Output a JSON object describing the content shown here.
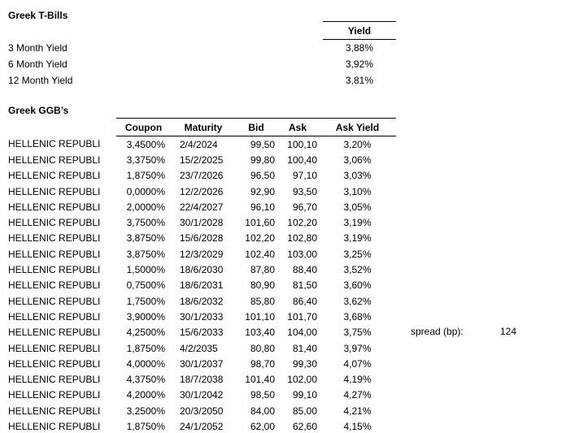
{
  "tbills": {
    "title": "Greek T-Bills",
    "yield_header": "Yield",
    "rows": [
      {
        "label": "3 Month Yield",
        "value": "3,88%"
      },
      {
        "label": "6 Month Yield",
        "value": "3,92%"
      },
      {
        "label": "12 Month Yield",
        "value": "3,81%"
      }
    ]
  },
  "ggb": {
    "title": "Greek GGB’s",
    "columns": [
      "Coupon",
      "Maturity",
      "Bid",
      "Ask",
      "Ask Yield"
    ],
    "rows": [
      {
        "name": "HELLENIC REPUBLI",
        "coupon": "3,4500%",
        "maturity": "2/4/2024",
        "bid": "99,50",
        "ask": "100,10",
        "ask_yield": "3,20%"
      },
      {
        "name": "HELLENIC REPUBLI",
        "coupon": "3,3750%",
        "maturity": "15/2/2025",
        "bid": "99,80",
        "ask": "100,40",
        "ask_yield": "3,06%"
      },
      {
        "name": "HELLENIC REPUBLI",
        "coupon": "1,8750%",
        "maturity": "23/7/2026",
        "bid": "96,50",
        "ask": "97,10",
        "ask_yield": "3,03%"
      },
      {
        "name": "HELLENIC REPUBLI",
        "coupon": "0,0000%",
        "maturity": "12/2/2026",
        "bid": "92,90",
        "ask": "93,50",
        "ask_yield": "3,10%"
      },
      {
        "name": "HELLENIC REPUBLI",
        "coupon": "2,0000%",
        "maturity": "22/4/2027",
        "bid": "96,10",
        "ask": "96,70",
        "ask_yield": "3,05%"
      },
      {
        "name": "HELLENIC REPUBLI",
        "coupon": "3,7500%",
        "maturity": "30/1/2028",
        "bid": "101,60",
        "ask": "102,20",
        "ask_yield": "3,19%"
      },
      {
        "name": "HELLENIC REPUBLI",
        "coupon": "3,8750%",
        "maturity": "15/6/2028",
        "bid": "102,20",
        "ask": "102,80",
        "ask_yield": "3,19%"
      },
      {
        "name": "HELLENIC REPUBLI",
        "coupon": "3,8750%",
        "maturity": "12/3/2029",
        "bid": "102,40",
        "ask": "103,00",
        "ask_yield": "3,25%"
      },
      {
        "name": "HELLENIC REPUBLI",
        "coupon": "1,5000%",
        "maturity": "18/6/2030",
        "bid": "87,80",
        "ask": "88,40",
        "ask_yield": "3,52%"
      },
      {
        "name": "HELLENIC REPUBLI",
        "coupon": "0,7500%",
        "maturity": "18/6/2031",
        "bid": "80,90",
        "ask": "81,50",
        "ask_yield": "3,60%"
      },
      {
        "name": "HELLENIC REPUBLI",
        "coupon": "1,7500%",
        "maturity": "18/6/2032",
        "bid": "85,80",
        "ask": "86,40",
        "ask_yield": "3,62%"
      },
      {
        "name": "HELLENIC REPUBLI",
        "coupon": "3,9000%",
        "maturity": "30/1/2033",
        "bid": "101,10",
        "ask": "101,70",
        "ask_yield": "3,68%"
      },
      {
        "name": "HELLENIC REPUBLI",
        "coupon": "4,2500%",
        "maturity": "15/6/2033",
        "bid": "103,40",
        "ask": "104,00",
        "ask_yield": "3,75%"
      },
      {
        "name": "HELLENIC REPUBLI",
        "coupon": "1,8750%",
        "maturity": "4/2/2035",
        "bid": "80,80",
        "ask": "81,40",
        "ask_yield": "3,97%"
      },
      {
        "name": "HELLENIC REPUBLI",
        "coupon": "4,0000%",
        "maturity": "30/1/2037",
        "bid": "98,70",
        "ask": "99,30",
        "ask_yield": "4,07%"
      },
      {
        "name": "HELLENIC REPUBLI",
        "coupon": "4,3750%",
        "maturity": "18/7/2038",
        "bid": "101,40",
        "ask": "102,00",
        "ask_yield": "4,19%"
      },
      {
        "name": "HELLENIC REPUBLI",
        "coupon": "4,2000%",
        "maturity": "30/1/2042",
        "bid": "98,50",
        "ask": "99,10",
        "ask_yield": "4,27%"
      },
      {
        "name": "HELLENIC REPUBLI",
        "coupon": "3,2500%",
        "maturity": "20/3/2050",
        "bid": "84,00",
        "ask": "85,00",
        "ask_yield": "4,21%"
      },
      {
        "name": "HELLENIC REPUBLI",
        "coupon": "1,8750%",
        "maturity": "24/1/2052",
        "bid": "62,00",
        "ask": "62,60",
        "ask_yield": "4,15%"
      }
    ]
  },
  "spread": {
    "label": "spread (bp):",
    "value": "124"
  }
}
